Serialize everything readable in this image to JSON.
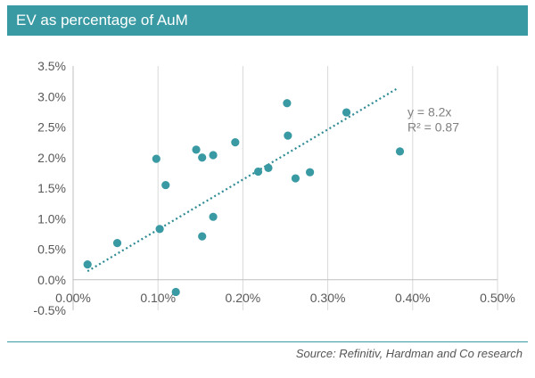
{
  "header": {
    "title": "EV as percentage of AuM"
  },
  "chart_data": {
    "type": "scatter",
    "title": "EV as percentage of AuM",
    "xlabel": "",
    "ylabel": "",
    "xlim": [
      0.0,
      0.5
    ],
    "ylim": [
      -0.5,
      3.5
    ],
    "x_ticks": [
      0.0,
      0.1,
      0.2,
      0.3,
      0.4,
      0.5
    ],
    "x_tick_labels": [
      "0.00%",
      "0.10%",
      "0.20%",
      "0.30%",
      "0.40%",
      "0.50%"
    ],
    "y_ticks": [
      -0.5,
      0.0,
      0.5,
      1.0,
      1.5,
      2.0,
      2.5,
      3.0,
      3.5
    ],
    "y_tick_labels": [
      "-0.5%",
      "0.0%",
      "0.5%",
      "1.0%",
      "1.5%",
      "2.0%",
      "2.5%",
      "3.0%",
      "3.5%"
    ],
    "grid": "vertical",
    "points": [
      {
        "x": 0.017,
        "y": 0.25
      },
      {
        "x": 0.052,
        "y": 0.6
      },
      {
        "x": 0.098,
        "y": 1.98
      },
      {
        "x": 0.102,
        "y": 0.83
      },
      {
        "x": 0.109,
        "y": 1.55
      },
      {
        "x": 0.121,
        "y": -0.2
      },
      {
        "x": 0.145,
        "y": 2.13
      },
      {
        "x": 0.152,
        "y": 2.0
      },
      {
        "x": 0.152,
        "y": 0.71
      },
      {
        "x": 0.165,
        "y": 2.04
      },
      {
        "x": 0.165,
        "y": 1.03
      },
      {
        "x": 0.191,
        "y": 2.25
      },
      {
        "x": 0.218,
        "y": 1.77
      },
      {
        "x": 0.23,
        "y": 1.83
      },
      {
        "x": 0.252,
        "y": 2.89
      },
      {
        "x": 0.253,
        "y": 2.36
      },
      {
        "x": 0.262,
        "y": 1.66
      },
      {
        "x": 0.279,
        "y": 1.76
      },
      {
        "x": 0.322,
        "y": 2.74
      },
      {
        "x": 0.385,
        "y": 2.1
      }
    ],
    "trendline": {
      "slope": 8.2,
      "x_range": [
        0.017,
        0.382
      ],
      "equation": "y = 8.2x",
      "r_squared": "R² = 0.87"
    },
    "colors": {
      "marker": "#3a9aa3",
      "trendline": "#2e8a93",
      "grid": "#d9d9d9",
      "axis": "#bfbfbf",
      "tick_text": "#595959",
      "annotation_text": "#7f7f7f"
    }
  },
  "footer": {
    "source": "Source: Refinitiv, Hardman and Co research"
  }
}
